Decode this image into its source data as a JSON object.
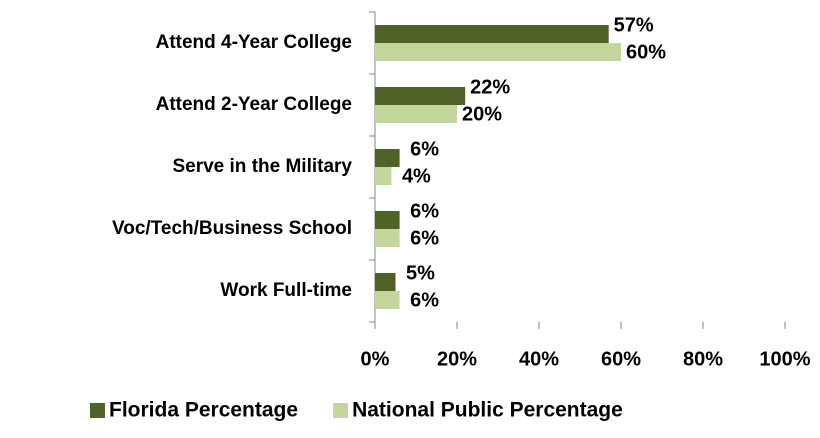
{
  "chart_data": {
    "type": "bar",
    "orientation": "horizontal",
    "categories": [
      "Attend 4-Year College",
      "Attend 2-Year College",
      "Serve in the Military",
      "Voc/Tech/Business School",
      "Work Full-time"
    ],
    "series": [
      {
        "name": "Florida Percentage",
        "color": "#4f6228",
        "values": [
          57,
          22,
          6,
          6,
          5
        ],
        "value_labels": [
          "57%",
          "22%",
          "6%",
          "6%",
          "5%"
        ]
      },
      {
        "name": "National Public Percentage",
        "color": "#c3d69b",
        "values": [
          60,
          20,
          4,
          6,
          6
        ],
        "value_labels": [
          "60%",
          "20%",
          "4%",
          "6%",
          "6%"
        ]
      }
    ],
    "xlim": [
      0,
      100
    ],
    "xticks": [
      {
        "value": 0,
        "label": "0%"
      },
      {
        "value": 20,
        "label": "20%"
      },
      {
        "value": 40,
        "label": "40%"
      },
      {
        "value": 60,
        "label": "60%"
      },
      {
        "value": 80,
        "label": "80%"
      },
      {
        "value": 100,
        "label": "100%"
      }
    ],
    "legend": "bottom"
  }
}
